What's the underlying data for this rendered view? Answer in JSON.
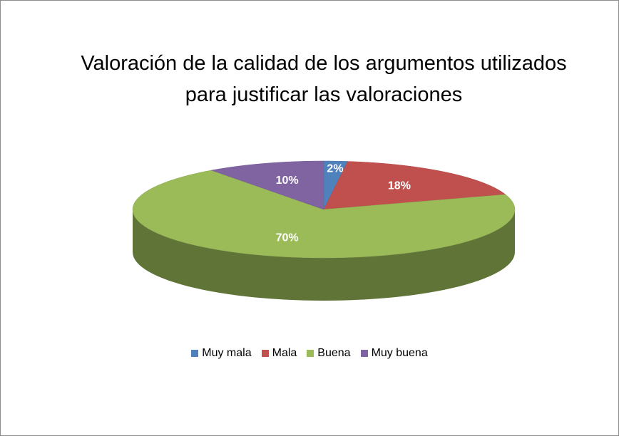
{
  "chart_data": {
    "type": "pie",
    "title": "Valoración de la calidad de los argumentos utilizados para justificar las valoraciones",
    "categories": [
      "Muy mala",
      "Mala",
      "Buena",
      "Muy buena"
    ],
    "values": [
      2,
      18,
      70,
      10
    ],
    "value_labels": [
      "2%",
      "18%",
      "70%",
      "10%"
    ],
    "colors": [
      "#4f81bd",
      "#c0504d",
      "#9bbb59",
      "#8064a2"
    ],
    "legend": "bottom"
  }
}
